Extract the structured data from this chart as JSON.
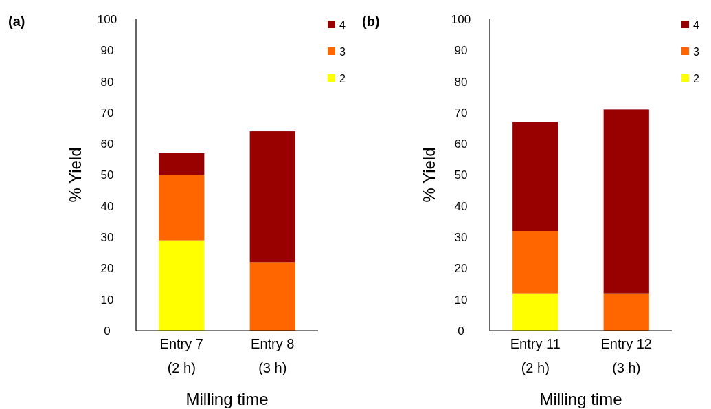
{
  "chart_data": [
    {
      "type": "bar",
      "title": "(a)",
      "xlabel": "Milling time",
      "ylabel": "% Yield",
      "categories": [
        "Entry 7 (2 h)",
        "Entry 8 (3 h)"
      ],
      "stacked": true,
      "ylim": [
        0,
        100
      ],
      "yticks": [
        0,
        10,
        20,
        30,
        40,
        50,
        60,
        70,
        80,
        90,
        100
      ],
      "grid": false,
      "legend": "top right",
      "series": [
        {
          "name": "2",
          "color": "#ffff00",
          "values": [
            29,
            0
          ]
        },
        {
          "name": "3",
          "color": "#ff6600",
          "values": [
            21,
            22
          ]
        },
        {
          "name": "4",
          "color": "#990000",
          "values": [
            7,
            42
          ]
        }
      ]
    },
    {
      "type": "bar",
      "title": "(b)",
      "xlabel": "Milling time",
      "ylabel": "% Yield",
      "categories": [
        "Entry 11 (2 h)",
        "Entry 12 (3 h)"
      ],
      "stacked": true,
      "ylim": [
        0,
        100
      ],
      "yticks": [
        0,
        10,
        20,
        30,
        40,
        50,
        60,
        70,
        80,
        90,
        100
      ],
      "grid": false,
      "legend": "top right",
      "series": [
        {
          "name": "2",
          "color": "#ffff00",
          "values": [
            12,
            0
          ]
        },
        {
          "name": "3",
          "color": "#ff6600",
          "values": [
            20,
            12
          ]
        },
        {
          "name": "4",
          "color": "#990000",
          "values": [
            35,
            59
          ]
        }
      ]
    }
  ]
}
